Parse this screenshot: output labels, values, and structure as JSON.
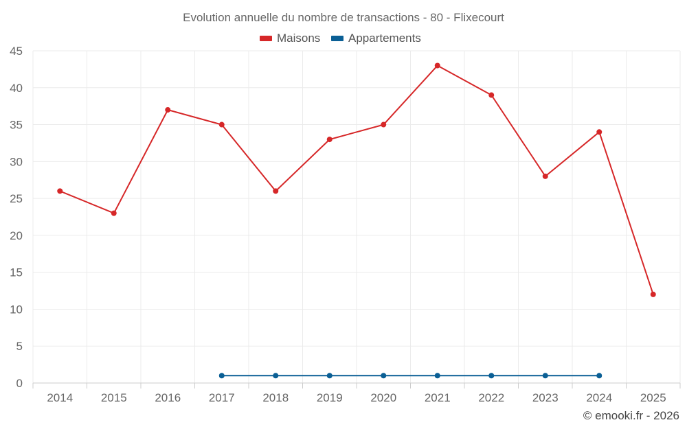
{
  "chart_data": {
    "type": "line",
    "title": "Evolution annuelle du nombre de transactions - 80 - Flixecourt",
    "categories": [
      "2014",
      "2015",
      "2016",
      "2017",
      "2018",
      "2019",
      "2020",
      "2021",
      "2022",
      "2023",
      "2024",
      "2025"
    ],
    "series": [
      {
        "name": "Maisons",
        "color": "#d62728",
        "values": [
          26,
          23,
          37,
          35,
          26,
          33,
          35,
          43,
          39,
          28,
          34,
          12
        ]
      },
      {
        "name": "Appartements",
        "color": "#0a5f95",
        "values": [
          null,
          null,
          null,
          1,
          1,
          1,
          1,
          1,
          1,
          1,
          1,
          null
        ]
      }
    ],
    "ylim": [
      0,
      45
    ],
    "yticks": [
      0,
      5,
      10,
      15,
      20,
      25,
      30,
      35,
      40,
      45
    ],
    "xlabel": "",
    "ylabel": "",
    "grid": true,
    "legend": "top-center"
  },
  "credit": "© emooki.fr - 2026"
}
